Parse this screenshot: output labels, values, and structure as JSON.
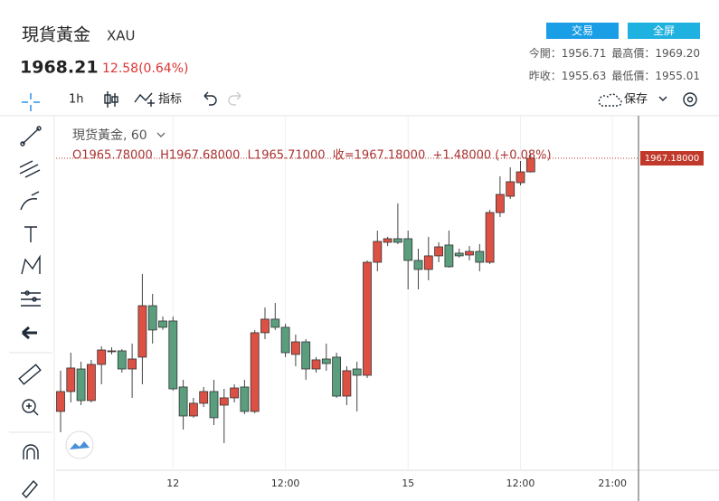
{
  "header": {
    "name": "現貨黃金",
    "symbol": "XAU",
    "price": "1968.21",
    "change": "12.58(0.64%)",
    "buttons": [
      "交易",
      "全屏"
    ],
    "stats": [
      [
        {
          "label": "今開：",
          "value": "1956.71"
        },
        {
          "label": "最高價：",
          "value": "1969.20"
        }
      ],
      [
        {
          "label": "昨收：",
          "value": "1955.63"
        },
        {
          "label": "最低價：",
          "value": "1955.01"
        }
      ]
    ]
  },
  "toolbar": {
    "interval": "1h",
    "indicators": "指标",
    "save": "保存"
  },
  "legend": {
    "title": "現货黃金, 60",
    "ohlc": "O1965.78000  H1967.68000  L1965.71000  收=1967.18000  +1.48000 (+0.08%)"
  },
  "chart_data": {
    "type": "candlestick",
    "categories": [
      null,
      null,
      null,
      null,
      null,
      null,
      null,
      null,
      null,
      null,
      null,
      "12",
      null,
      null,
      null,
      null,
      null,
      null,
      null,
      null,
      null,
      null,
      "12:00",
      null,
      null,
      null,
      null,
      null,
      null,
      null,
      null,
      null,
      null,
      null,
      "15",
      null,
      null,
      null,
      null,
      null,
      null,
      null,
      null,
      null,
      null,
      "12:00",
      null,
      null,
      null,
      null,
      null,
      null,
      null,
      null,
      "21:00",
      null,
      null
    ],
    "open": [
      1941.06,
      1943.11,
      1945.44,
      1942.18,
      1945.91,
      1947.22,
      1947.31,
      1945.44,
      1946.66,
      1951.97,
      1950.39,
      1950.39,
      1943.58,
      1940.59,
      1941.9,
      1943.11,
      1941.71,
      1942.46,
      1943.58,
      1941.06,
      1949.18,
      1950.58,
      1949.74,
      1946.94,
      1948.24,
      1945.44,
      1946.47,
      1946.66,
      1942.64,
      1945.44,
      1944.79,
      1956.45,
      1958.51,
      1958.88,
      1958.88,
      1956.64,
      1955.71,
      1957.11,
      1958.23,
      1957.39,
      1957.2,
      1957.57,
      1956.45,
      1961.58,
      1963.26,
      1964.66,
      1965.78,
      null,
      null,
      null,
      null,
      null,
      null,
      null,
      null,
      null,
      null
    ],
    "high": [
      1945.26,
      1947.12,
      1946.19,
      1946.38,
      1947.78,
      1947.68,
      1947.5,
      1948.06,
      1955.24,
      1953.19,
      1950.85,
      1950.85,
      1944.32,
      1942.46,
      1943.58,
      1944.32,
      1943.39,
      1943.86,
      1944.32,
      1949.46,
      1951.79,
      1952.25,
      1950.11,
      1948.99,
      1948.52,
      1946.66,
      1948.06,
      1947.12,
      1945.72,
      1946.19,
      1956.64,
      1959.72,
      1959.07,
      1962.52,
      1959.72,
      1957.85,
      1959.07,
      1958.51,
      1959.72,
      1957.85,
      1958.13,
      1958.32,
      1961.86,
      1965.32,
      1966.25,
      1966.9,
      1967.68,
      null,
      null,
      null,
      null,
      null,
      null,
      null,
      null,
      null,
      null
    ],
    "low": [
      1938.91,
      1941.99,
      1941.71,
      1941.99,
      1943.86,
      1946.94,
      1945.07,
      1942.46,
      1943.86,
      1948.06,
      1949.46,
      1943.2,
      1939.19,
      1940.41,
      1941.52,
      1939.66,
      1937.79,
      1941.99,
      1940.78,
      1940.87,
      1948.52,
      1949.46,
      1946.66,
      1945.72,
      1944.32,
      1945.07,
      1945.26,
      1942.46,
      1941.71,
      1941.06,
      1944.51,
      1955.52,
      1958.13,
      1958.32,
      1953.65,
      1953.65,
      1954.59,
      1956.45,
      1955.89,
      1956.92,
      1956.64,
      1955.52,
      1956.27,
      1961.12,
      1962.98,
      1964.38,
      1965.71,
      null,
      null,
      null,
      null,
      null,
      null,
      null,
      null,
      null,
      null
    ],
    "close": [
      1943.11,
      1945.54,
      1942.18,
      1945.91,
      1947.4,
      1947.31,
      1945.44,
      1946.47,
      1951.97,
      1949.46,
      1949.74,
      1943.39,
      1940.59,
      1941.9,
      1943.11,
      1940.41,
      1942.46,
      1943.48,
      1941.06,
      1949.18,
      1950.58,
      1949.74,
      1947.12,
      1948.24,
      1945.44,
      1946.38,
      1946.0,
      1942.64,
      1945.26,
      1944.79,
      1956.45,
      1958.6,
      1958.88,
      1958.51,
      1956.64,
      1955.71,
      1957.11,
      1958.04,
      1955.99,
      1957.11,
      1957.57,
      1956.45,
      1961.58,
      1963.45,
      1964.76,
      1965.78,
      1967.18,
      null,
      null,
      null,
      null,
      null,
      null,
      null,
      null,
      null,
      null
    ],
    "ylim": [
      1934.99,
      1971.38
    ],
    "last_price": {
      "value": 1967.18,
      "label": "1967.18000"
    },
    "up_color": "#dd5144",
    "down_color": "#5a9e7e",
    "last_color": "#c0392b",
    "xgrid": true
  }
}
